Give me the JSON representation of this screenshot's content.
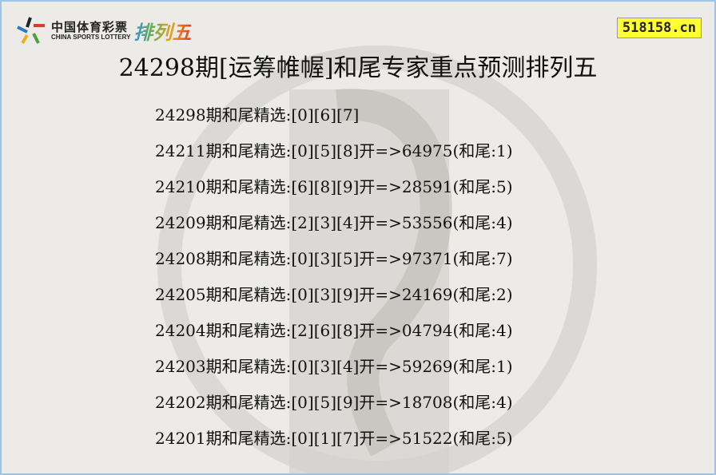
{
  "logo": {
    "cn": "中国体育彩票",
    "en": "CHINA SPORTS LOTTERY",
    "game": "排列五"
  },
  "site_badge": "518158.cn",
  "title": "24298期[运筹帷幄]和尾专家重点预测排列五",
  "rows": [
    "24298期和尾精选:[0][6][7]",
    "24211期和尾精选:[0][5][8]开=>64975(和尾:1)",
    "24210期和尾精选:[6][8][9]开=>28591(和尾:5)",
    "24209期和尾精选:[2][3][4]开=>53556(和尾:4)",
    "24208期和尾精选:[0][3][5]开=>97371(和尾:7)",
    "24205期和尾精选:[0][3][9]开=>24169(和尾:2)",
    "24204期和尾精选:[2][6][8]开=>04794(和尾:4)",
    "24203期和尾精选:[0][3][4]开=>59269(和尾:1)",
    "24202期和尾精选:[0][5][9]开=>18708(和尾:4)",
    "24201期和尾精选:[0][1][7]开=>51522(和尾:5)"
  ]
}
